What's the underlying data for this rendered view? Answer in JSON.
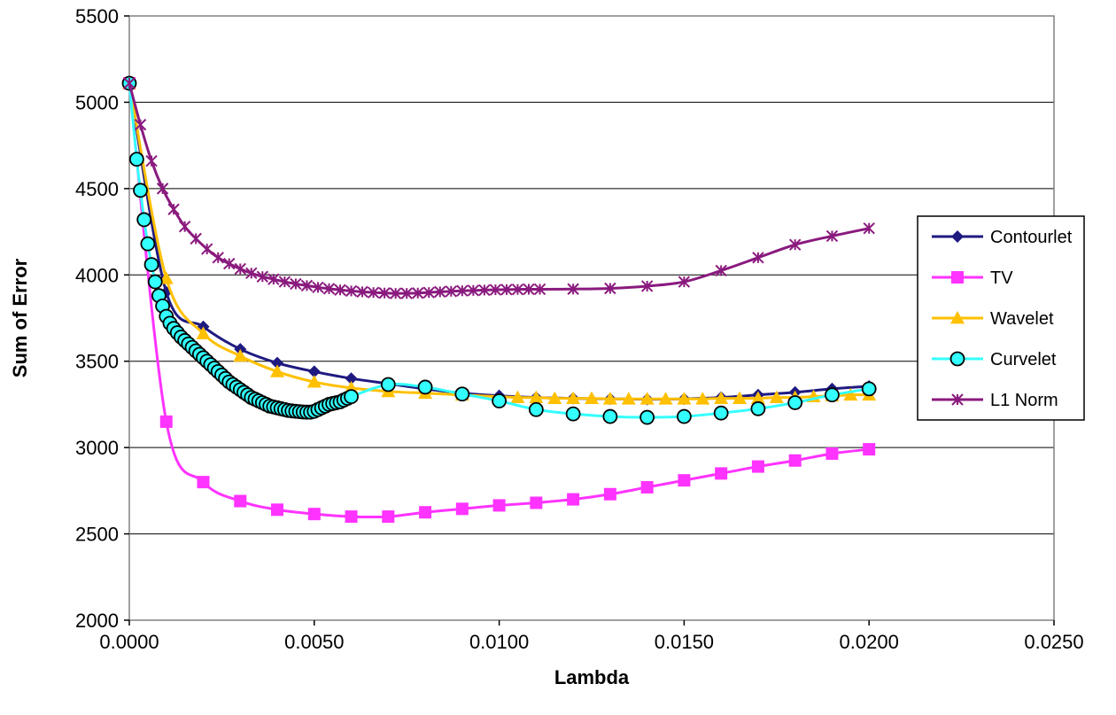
{
  "chart_data": {
    "type": "line",
    "xlabel": "Lambda",
    "ylabel": "Sum of Error",
    "xlim": [
      0,
      0.025
    ],
    "ylim": [
      2000,
      5500
    ],
    "x_ticks": [
      "0.0000",
      "0.0050",
      "0.0100",
      "0.0150",
      "0.0200",
      "0.0250"
    ],
    "y_ticks": [
      "2000",
      "2500",
      "3000",
      "3500",
      "4000",
      "4500",
      "5000",
      "5500"
    ],
    "grid": "horizontal",
    "legend_position": "right",
    "series": [
      {
        "name": "Contourlet",
        "color": "#1f1a80",
        "marker": "diamond",
        "x": [
          0,
          0.001,
          0.002,
          0.003,
          0.004,
          0.005,
          0.006,
          0.007,
          0.008,
          0.009,
          0.01,
          0.011,
          0.012,
          0.013,
          0.014,
          0.015,
          0.016,
          0.017,
          0.018,
          0.019,
          0.02
        ],
        "y": [
          5110,
          3900,
          3700,
          3570,
          3490,
          3440,
          3400,
          3370,
          3340,
          3315,
          3300,
          3290,
          3285,
          3282,
          3280,
          3282,
          3290,
          3305,
          3320,
          3340,
          3355
        ]
      },
      {
        "name": "TV",
        "color": "#ff33ff",
        "marker": "square",
        "x": [
          0,
          0.001,
          0.002,
          0.003,
          0.004,
          0.005,
          0.006,
          0.007,
          0.008,
          0.009,
          0.01,
          0.011,
          0.012,
          0.013,
          0.014,
          0.015,
          0.016,
          0.017,
          0.018,
          0.019,
          0.02
        ],
        "y": [
          5110,
          3150,
          2800,
          2690,
          2640,
          2615,
          2600,
          2600,
          2625,
          2645,
          2665,
          2680,
          2700,
          2730,
          2770,
          2810,
          2850,
          2890,
          2925,
          2965,
          2990
        ]
      },
      {
        "name": "Wavelet",
        "color": "#ffc000",
        "marker": "triangle",
        "x": [
          0,
          0.001,
          0.002,
          0.003,
          0.004,
          0.005,
          0.006,
          0.007,
          0.008,
          0.009,
          0.0105,
          0.011,
          0.0115,
          0.012,
          0.0125,
          0.013,
          0.0135,
          0.014,
          0.0145,
          0.015,
          0.0155,
          0.016,
          0.0165,
          0.017,
          0.0175,
          0.018,
          0.0185,
          0.019,
          0.0195,
          0.02
        ],
        "y": [
          5110,
          3980,
          3660,
          3530,
          3440,
          3380,
          3345,
          3325,
          3315,
          3305,
          3290,
          3290,
          3285,
          3285,
          3285,
          3282,
          3282,
          3282,
          3282,
          3282,
          3282,
          3285,
          3285,
          3285,
          3290,
          3290,
          3295,
          3300,
          3305,
          3305
        ]
      },
      {
        "name": "Curvelet",
        "color": "#33ffff",
        "marker": "circle",
        "x": [
          0,
          0.0002,
          0.0003,
          0.0004,
          0.0005,
          0.0006,
          0.0007,
          0.0008,
          0.0009,
          0.001,
          0.0011,
          0.0012,
          0.0013,
          0.0014,
          0.0015,
          0.0016,
          0.0017,
          0.0018,
          0.0019,
          0.002,
          0.0021,
          0.0022,
          0.0023,
          0.0024,
          0.0025,
          0.0026,
          0.0027,
          0.0028,
          0.0029,
          0.003,
          0.0031,
          0.0032,
          0.0033,
          0.0034,
          0.0035,
          0.0036,
          0.0037,
          0.0038,
          0.0039,
          0.004,
          0.0041,
          0.0042,
          0.0043,
          0.0044,
          0.0045,
          0.0046,
          0.0047,
          0.0048,
          0.0049,
          0.005,
          0.0051,
          0.0052,
          0.0053,
          0.0054,
          0.0055,
          0.0056,
          0.0057,
          0.0058,
          0.0059,
          0.006,
          0.007,
          0.008,
          0.009,
          0.01,
          0.011,
          0.012,
          0.013,
          0.014,
          0.015,
          0.016,
          0.017,
          0.018,
          0.019,
          0.02
        ],
        "y": [
          5110,
          4670,
          4490,
          4320,
          4180,
          4060,
          3960,
          3880,
          3820,
          3760,
          3720,
          3690,
          3665,
          3640,
          3620,
          3600,
          3580,
          3560,
          3540,
          3520,
          3500,
          3480,
          3460,
          3440,
          3420,
          3400,
          3380,
          3365,
          3350,
          3335,
          3320,
          3305,
          3290,
          3280,
          3270,
          3260,
          3250,
          3240,
          3235,
          3230,
          3225,
          3220,
          3215,
          3212,
          3210,
          3208,
          3206,
          3205,
          3205,
          3210,
          3220,
          3230,
          3240,
          3250,
          3255,
          3260,
          3265,
          3275,
          3285,
          3295,
          3365,
          3350,
          3310,
          3270,
          3220,
          3195,
          3180,
          3175,
          3180,
          3200,
          3225,
          3260,
          3305,
          3340
        ]
      },
      {
        "name": "L1 Norm",
        "color": "#8a1a7e",
        "marker": "star",
        "x": [
          0,
          0.0003,
          0.0006,
          0.0009,
          0.0012,
          0.0015,
          0.0018,
          0.0021,
          0.0024,
          0.0027,
          0.003,
          0.0033,
          0.0036,
          0.0039,
          0.0042,
          0.0045,
          0.0048,
          0.0051,
          0.0054,
          0.0057,
          0.006,
          0.0063,
          0.0066,
          0.0069,
          0.0072,
          0.0075,
          0.0078,
          0.0081,
          0.0084,
          0.0087,
          0.009,
          0.0093,
          0.0096,
          0.0099,
          0.0102,
          0.0105,
          0.0108,
          0.0111,
          0.012,
          0.013,
          0.014,
          0.015,
          0.016,
          0.017,
          0.018,
          0.019,
          0.02
        ],
        "y": [
          5110,
          4870,
          4660,
          4500,
          4380,
          4280,
          4210,
          4150,
          4100,
          4065,
          4035,
          4010,
          3990,
          3975,
          3960,
          3948,
          3938,
          3928,
          3920,
          3913,
          3907,
          3902,
          3898,
          3895,
          3893,
          3893,
          3895,
          3898,
          3902,
          3905,
          3908,
          3910,
          3912,
          3914,
          3915,
          3916,
          3917,
          3917,
          3918,
          3922,
          3935,
          3960,
          4025,
          4100,
          4175,
          4225,
          4270
        ]
      }
    ]
  }
}
